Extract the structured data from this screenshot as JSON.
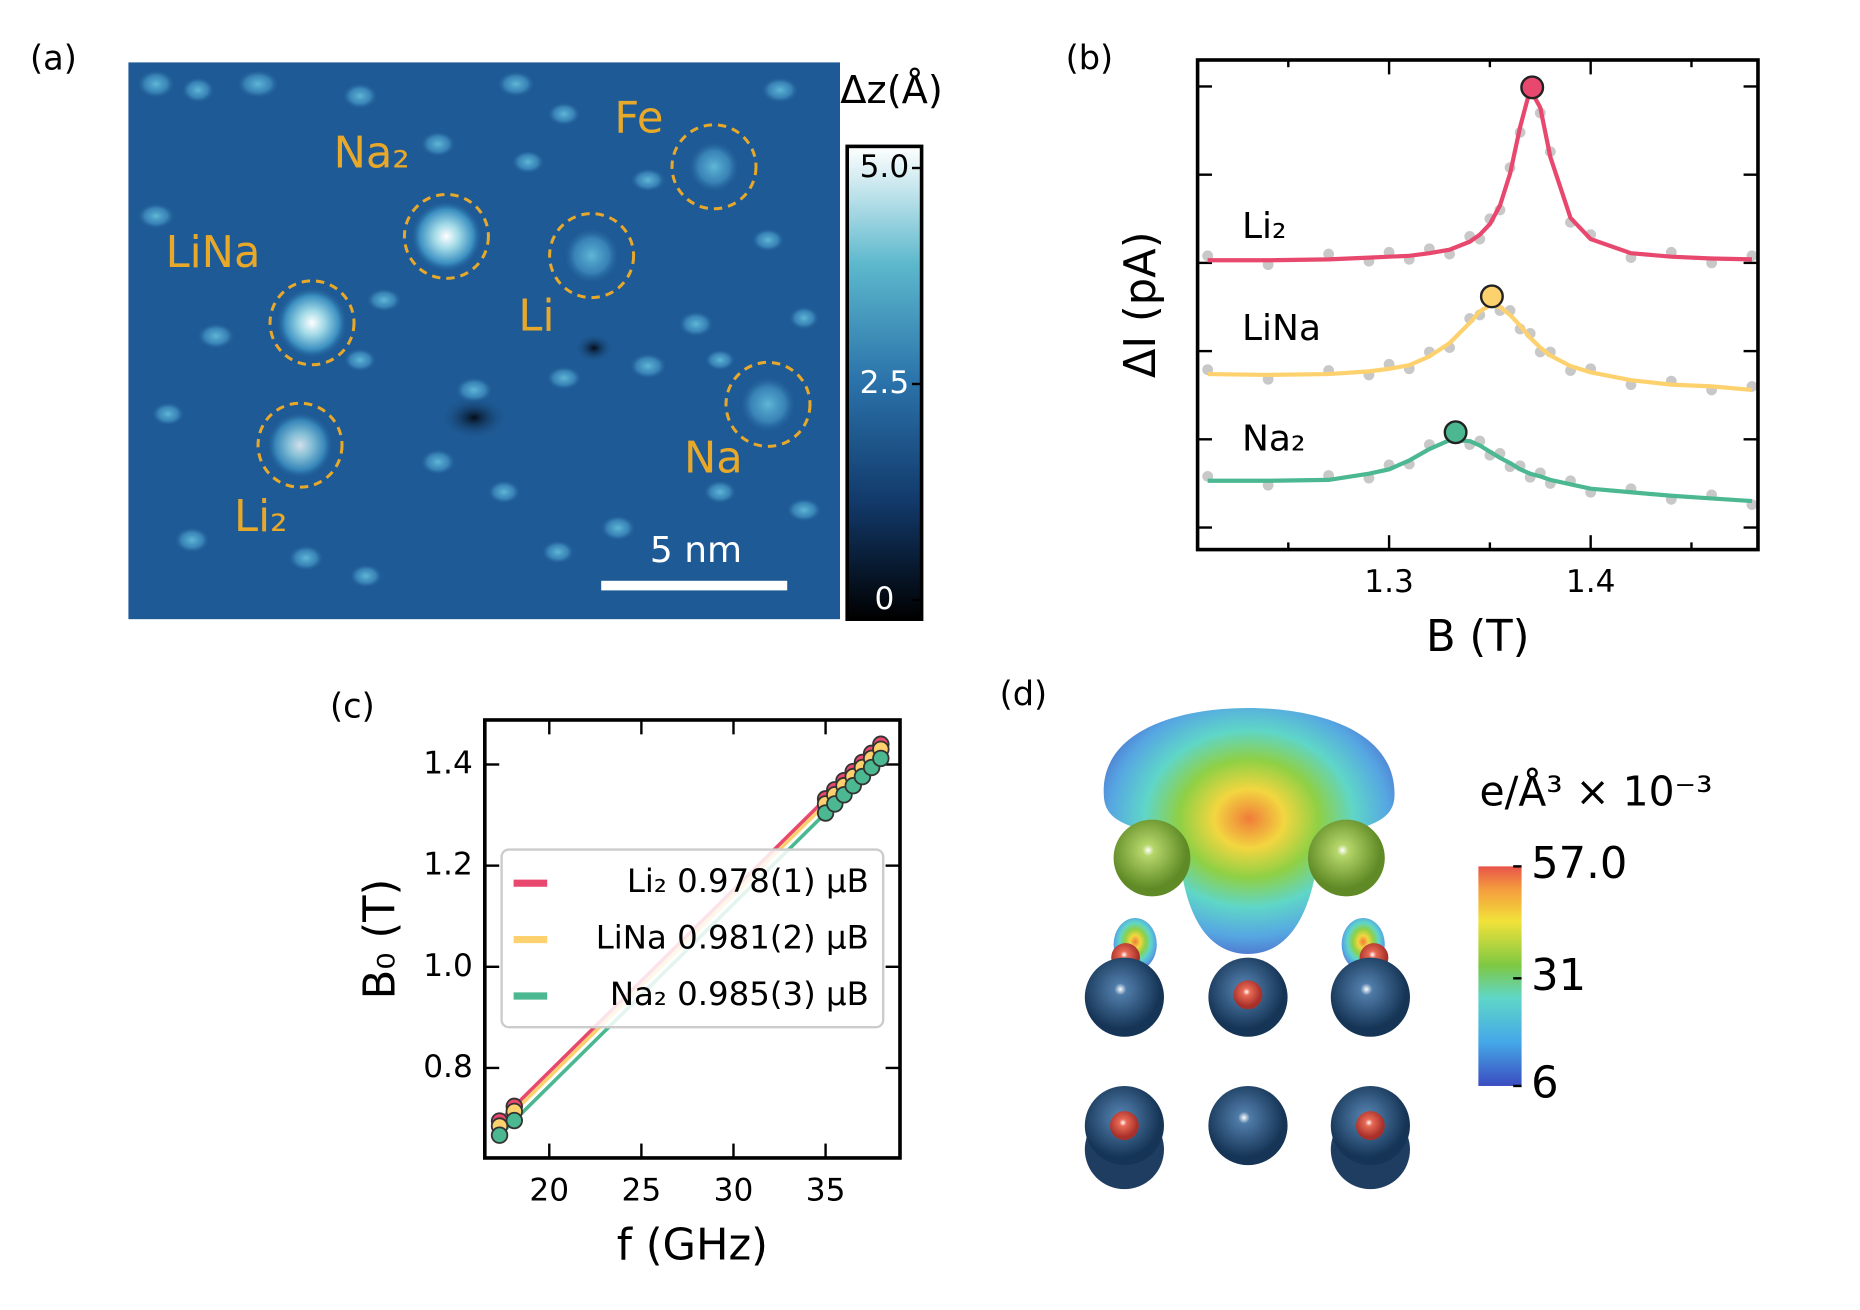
{
  "panel_labels": [
    "(a)",
    "(b)",
    "(c)",
    "(d)"
  ],
  "stm_image": {
    "label": "Δz(Å)",
    "clim": [
      0,
      5
    ],
    "colorbar_ticks": [
      {
        "value": 5,
        "label": "5.0"
      },
      2.5,
      0
    ],
    "annotations": [
      "Fe",
      "Na₂",
      "LiNa",
      "Li",
      "Na",
      "Li₂"
    ],
    "scale_bar": "5 nm"
  },
  "chart_data": [
    {
      "type": "line",
      "xlabel": "B (T)",
      "ylabel": "ΔI (pA)",
      "x": [
        1.21,
        1.24,
        1.27,
        1.29,
        1.3,
        1.31,
        1.32,
        1.33,
        1.34,
        1.345,
        1.35,
        1.355,
        1.36,
        1.365,
        1.37,
        1.375,
        1.38,
        1.39,
        1.4,
        1.42,
        1.44,
        1.46,
        1.48
      ],
      "measured_color": "#c8c8c8",
      "series": [
        {
          "name": "Li₂",
          "color": "#e8476e",
          "values": [
            3.03,
            3.03,
            3.04,
            3.06,
            3.07,
            3.08,
            3.11,
            3.15,
            3.24,
            3.32,
            3.44,
            3.65,
            4.01,
            4.54,
            4.97,
            4.76,
            4.2,
            3.51,
            3.27,
            3.11,
            3.07,
            3.05,
            3.04
          ],
          "measured": [
            3.08,
            2.98,
            3.1,
            3.02,
            3.12,
            3.04,
            3.16,
            3.1,
            3.3,
            3.27,
            3.5,
            3.6,
            4.08,
            4.48,
            5.02,
            4.7,
            4.26,
            3.46,
            3.32,
            3.06,
            3.12,
            3.0,
            3.08
          ],
          "peak_x": 1.371,
          "peak_y": 4.99
        },
        {
          "name": "LiNa",
          "color": "#fdd16e",
          "values": [
            1.74,
            1.73,
            1.74,
            1.77,
            1.8,
            1.84,
            1.94,
            2.09,
            2.32,
            2.45,
            2.52,
            2.5,
            2.41,
            2.29,
            2.15,
            2.04,
            1.95,
            1.83,
            1.76,
            1.67,
            1.62,
            1.6,
            1.56
          ],
          "measured": [
            1.79,
            1.68,
            1.78,
            1.73,
            1.85,
            1.8,
            1.99,
            2.04,
            2.37,
            2.41,
            2.58,
            2.46,
            2.46,
            2.25,
            2.2,
            1.99,
            1.99,
            1.78,
            1.8,
            1.62,
            1.66,
            1.56,
            1.6
          ],
          "peak_x": 1.351,
          "peak_y": 2.62
        },
        {
          "name": "Na₂",
          "color": "#4bb891",
          "values": [
            0.53,
            0.53,
            0.54,
            0.61,
            0.66,
            0.76,
            0.89,
            0.99,
            0.98,
            0.93,
            0.86,
            0.79,
            0.73,
            0.66,
            0.61,
            0.58,
            0.54,
            0.49,
            0.44,
            0.4,
            0.36,
            0.33,
            0.3
          ],
          "measured": [
            0.58,
            0.48,
            0.59,
            0.56,
            0.71,
            0.72,
            0.94,
            1.04,
            0.94,
            0.98,
            0.82,
            0.84,
            0.69,
            0.7,
            0.57,
            0.62,
            0.5,
            0.53,
            0.4,
            0.44,
            0.32,
            0.37,
            0.26
          ],
          "peak_x": 1.333,
          "peak_y": 1.08
        }
      ],
      "xlim": [
        1.205,
        1.483
      ],
      "xticks": [
        1.3,
        1.4
      ],
      "xminorticks": [
        1.25,
        1.35,
        1.45
      ],
      "ylim": [
        -0.25,
        5.3
      ],
      "yticks": [
        0,
        1,
        2,
        3,
        4,
        5
      ],
      "ytick_labels": false
    },
    {
      "type": "scatter",
      "xlabel": "f (GHz)",
      "ylabel": "B₀ (T)",
      "lines": true,
      "legend": "center left",
      "x": [
        17.3,
        18.1,
        35,
        35.5,
        36,
        36.5,
        37,
        37.5,
        38
      ],
      "series": [
        {
          "name": "Li₂ 0.978(1) μB",
          "color": "#e8476e",
          "values": [
            0.695,
            0.724,
            1.332,
            1.35,
            1.368,
            1.386,
            1.404,
            1.422,
            1.44
          ]
        },
        {
          "name": "LiNa 0.981(2) μB",
          "color": "#fdd16e",
          "values": [
            0.685,
            0.714,
            1.322,
            1.34,
            1.358,
            1.376,
            1.394,
            1.412,
            1.43
          ]
        },
        {
          "name": "Na₂ 0.985(3) μB",
          "color": "#4bb891",
          "values": [
            0.667,
            0.696,
            1.304,
            1.322,
            1.34,
            1.358,
            1.376,
            1.394,
            1.412
          ]
        }
      ],
      "xlim": [
        16.5,
        39.04
      ],
      "xticks": [
        20,
        25,
        30,
        35
      ],
      "ylim": [
        0.622,
        1.488
      ],
      "yticks": [
        0.8,
        {
          "value": 1,
          "label": "1.0"
        },
        1.2,
        1.4
      ]
    }
  ],
  "charge_density": {
    "colorbar_label": "e/Å³ × 10⁻³",
    "clim": [
      6,
      57
    ],
    "colorbar_ticks": [
      {
        "value": 57,
        "label": "57.0"
      },
      31,
      6
    ]
  }
}
